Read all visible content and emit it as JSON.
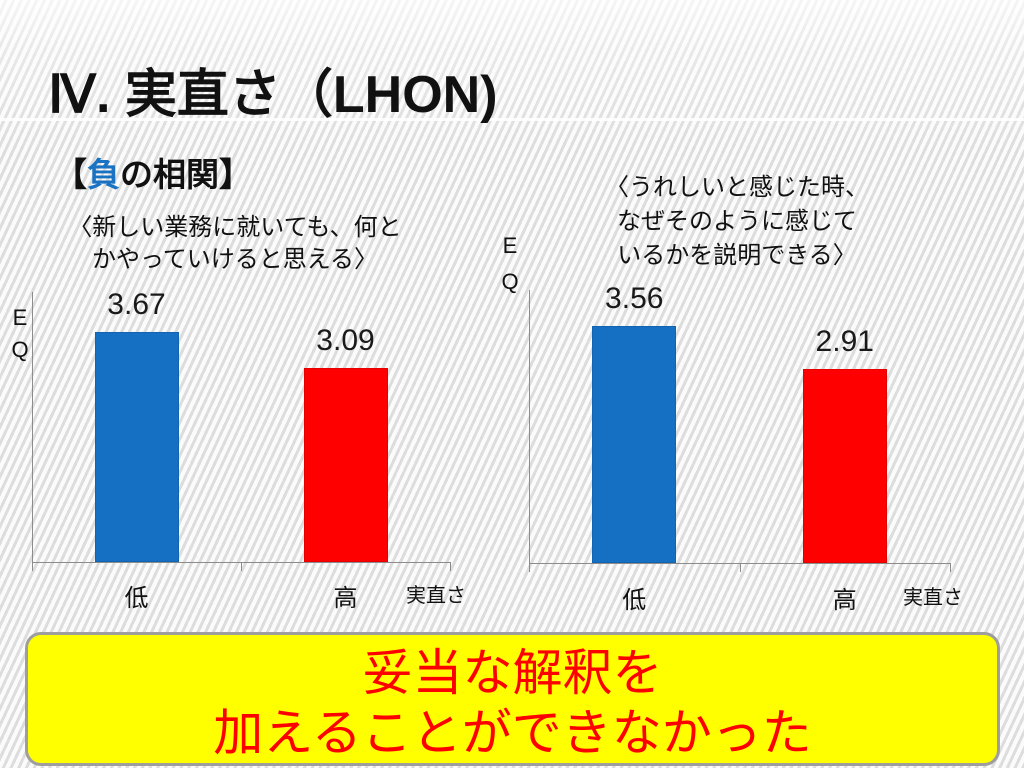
{
  "slide": {
    "title": "Ⅳ. 実直さ（LHON)",
    "heading": {
      "open": "【",
      "highlight": "負",
      "rest": "の相関】"
    },
    "conclusion": [
      "妥当な解釈を",
      "加えることができなかった"
    ]
  },
  "colors": {
    "highlight_blue": "#1a72c2",
    "conclusion_text": "#ff0000",
    "conclusion_background": "#ffff00",
    "axis": "#8c8c8c"
  },
  "chart_data": [
    {
      "type": "bar",
      "title": [
        "〈新しい業務に就いても、何と",
        "かやっていけると思える〉"
      ],
      "xlabel": "実直さ",
      "ylabel": "EQ",
      "categories": [
        "低",
        "高"
      ],
      "values": [
        3.67,
        3.09
      ],
      "bar_colors": [
        "#1570c4",
        "#ff0000"
      ],
      "ylim": [
        0,
        4.3
      ],
      "grid": false,
      "legend": "none"
    },
    {
      "type": "bar",
      "title": [
        "〈うれしいと感じた時、",
        "なぜそのように感じて",
        "いるかを説明できる〉"
      ],
      "xlabel": "実直さ",
      "ylabel": "EQ",
      "categories": [
        "低",
        "高"
      ],
      "values": [
        3.56,
        2.91
      ],
      "bar_colors": [
        "#1570c4",
        "#ff0000"
      ],
      "ylim": [
        0,
        4.1
      ],
      "grid": false,
      "legend": "none"
    }
  ]
}
